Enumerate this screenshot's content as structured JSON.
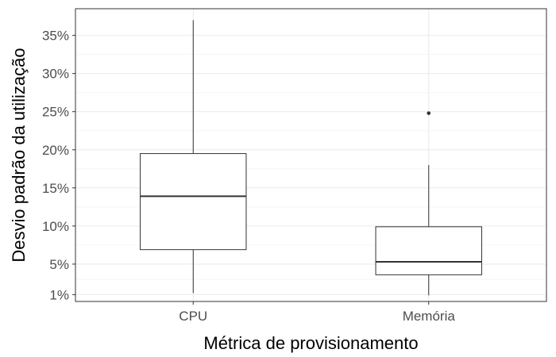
{
  "chart_data": {
    "type": "boxplot",
    "xlabel": "Métrica de provisionamento",
    "ylabel": "Desvio padrão da utilização",
    "categories": [
      "CPU",
      "Memória"
    ],
    "yticks": [
      {
        "value": 1,
        "label": "1%"
      },
      {
        "value": 5,
        "label": "5%"
      },
      {
        "value": 10,
        "label": "10%"
      },
      {
        "value": 15,
        "label": "15%"
      },
      {
        "value": 20,
        "label": "20%"
      },
      {
        "value": 25,
        "label": "25%"
      },
      {
        "value": 30,
        "label": "30%"
      },
      {
        "value": 35,
        "label": "35%"
      }
    ],
    "ylim": [
      0.1,
      38.5
    ],
    "grid": true,
    "boxes": [
      {
        "category": "CPU",
        "whisker_low": 1.2,
        "q1": 6.9,
        "median": 13.9,
        "q3": 19.5,
        "whisker_high": 37.0,
        "outliers": []
      },
      {
        "category": "Memória",
        "whisker_low": 0.9,
        "q1": 3.6,
        "median": 5.3,
        "q3": 9.9,
        "whisker_high": 18.0,
        "outliers": [
          24.8
        ]
      }
    ],
    "colors": {
      "box_line": "#333333",
      "box_fill": "#ffffff",
      "grid_major": "#ebebeb",
      "grid_minor": "#f5f5f5",
      "panel_border": "#333333"
    }
  }
}
